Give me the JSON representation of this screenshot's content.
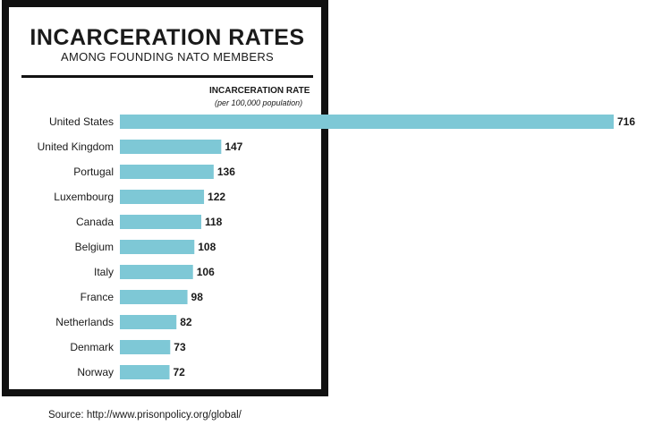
{
  "title": "INCARCERATION RATES",
  "subtitle": "AMONG FOUNDING NATO MEMBERS",
  "source": "Source: http://www.prisonpolicy.org/global/",
  "chart_data": {
    "type": "bar",
    "orientation": "horizontal",
    "title": "INCARCERATION RATE",
    "subtitle": "(per 100,000 population)",
    "categories": [
      "United States",
      "United Kingdom",
      "Portugal",
      "Luxembourg",
      "Canada",
      "Belgium",
      "Italy",
      "France",
      "Netherlands",
      "Denmark",
      "Norway"
    ],
    "values": [
      716,
      147,
      136,
      122,
      118,
      108,
      106,
      98,
      82,
      73,
      72
    ],
    "bar_color": "#7ec8d6",
    "xlim": [
      0,
      716
    ],
    "grid": false,
    "legend": "none"
  }
}
